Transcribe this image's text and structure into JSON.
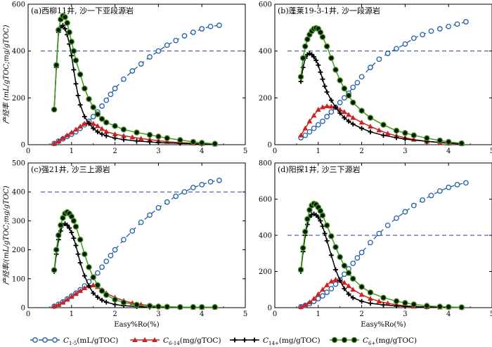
{
  "chart_data": [
    {
      "type": "line",
      "title": "(a)西柳11井, 沙一下亚段源岩",
      "xlabel": "",
      "ylabel": "产烃率 (mL/gTOC;mg/gTOC)",
      "xlim": [
        0,
        5
      ],
      "ylim": [
        0,
        600
      ],
      "xticks": [
        "0",
        "1",
        "2",
        "3",
        "4",
        "5"
      ],
      "yticks": [
        "0",
        "200",
        "400",
        "600"
      ],
      "ref_line": 400,
      "series": [
        {
          "key": "c15",
          "x": [
            0.6,
            0.7,
            0.8,
            0.9,
            1.0,
            1.1,
            1.2,
            1.3,
            1.4,
            1.5,
            1.6,
            1.7,
            1.8,
            1.9,
            2.0,
            2.2,
            2.4,
            2.6,
            2.8,
            3.0,
            3.2,
            3.4,
            3.6,
            3.8,
            4.0,
            4.2,
            4.4
          ],
          "y": [
            5,
            15,
            25,
            35,
            45,
            55,
            70,
            85,
            100,
            120,
            140,
            165,
            190,
            215,
            240,
            280,
            315,
            345,
            375,
            400,
            425,
            445,
            465,
            480,
            495,
            505,
            510
          ]
        },
        {
          "key": "c614",
          "x": [
            0.6,
            0.7,
            0.8,
            0.9,
            1.0,
            1.1,
            1.2,
            1.3,
            1.4,
            1.5,
            1.6,
            1.7,
            1.8,
            2.0,
            2.2,
            2.4,
            2.6,
            2.8,
            3.0,
            3.2,
            3.5,
            3.8,
            4.0,
            4.3
          ],
          "y": [
            5,
            15,
            28,
            40,
            52,
            65,
            78,
            90,
            95,
            90,
            80,
            68,
            56,
            45,
            38,
            32,
            26,
            22,
            17,
            13,
            9,
            6,
            4,
            2
          ]
        },
        {
          "key": "c14",
          "x": [
            0.6,
            0.65,
            0.7,
            0.75,
            0.8,
            0.85,
            0.9,
            0.95,
            1.0,
            1.05,
            1.1,
            1.15,
            1.2,
            1.3,
            1.4,
            1.5,
            1.6,
            1.7,
            1.8,
            2.0,
            2.2,
            2.5,
            2.8,
            3.0,
            3.5,
            4.0,
            4.3
          ],
          "y": [
            150,
            330,
            480,
            500,
            510,
            495,
            470,
            430,
            380,
            320,
            260,
            210,
            170,
            120,
            90,
            70,
            55,
            45,
            38,
            28,
            22,
            16,
            12,
            9,
            6,
            3,
            2
          ]
        },
        {
          "key": "c6",
          "x": [
            0.6,
            0.65,
            0.7,
            0.75,
            0.8,
            0.85,
            0.9,
            0.95,
            1.0,
            1.05,
            1.1,
            1.2,
            1.3,
            1.4,
            1.5,
            1.6,
            1.7,
            1.8,
            2.0,
            2.2,
            2.5,
            2.8,
            3.0,
            3.2,
            3.5,
            3.8,
            4.0,
            4.3
          ],
          "y": [
            150,
            340,
            490,
            535,
            550,
            545,
            520,
            480,
            440,
            400,
            360,
            300,
            240,
            195,
            160,
            130,
            110,
            95,
            80,
            65,
            52,
            42,
            35,
            28,
            20,
            12,
            8,
            4
          ]
        }
      ]
    },
    {
      "type": "line",
      "title": "(b)蓬莱19-3-1井, 沙一段源岩",
      "xlabel": "",
      "ylabel": "",
      "xlim": [
        0,
        5
      ],
      "ylim": [
        0,
        600
      ],
      "xticks": [
        "0",
        "1",
        "2",
        "3",
        "4",
        "5"
      ],
      "yticks": [
        "0",
        "200",
        "400",
        "600"
      ],
      "ref_line": 400,
      "series": [
        {
          "key": "c15",
          "x": [
            0.6,
            0.7,
            0.8,
            0.9,
            1.0,
            1.1,
            1.2,
            1.3,
            1.4,
            1.5,
            1.6,
            1.7,
            1.8,
            1.9,
            2.0,
            2.2,
            2.4,
            2.6,
            2.8,
            3.0,
            3.2,
            3.4,
            3.6,
            3.8,
            4.0,
            4.2,
            4.4
          ],
          "y": [
            30,
            40,
            55,
            70,
            85,
            100,
            120,
            140,
            160,
            180,
            200,
            220,
            245,
            265,
            290,
            330,
            365,
            390,
            410,
            430,
            455,
            470,
            485,
            495,
            505,
            515,
            525
          ]
        },
        {
          "key": "c614",
          "x": [
            0.6,
            0.7,
            0.8,
            0.9,
            1.0,
            1.1,
            1.2,
            1.3,
            1.4,
            1.5,
            1.6,
            1.7,
            1.8,
            2.0,
            2.2,
            2.4,
            2.6,
            2.8,
            3.0,
            3.2,
            3.5,
            3.8,
            4.0,
            4.3
          ],
          "y": [
            40,
            70,
            100,
            125,
            150,
            160,
            165,
            163,
            160,
            150,
            140,
            128,
            115,
            95,
            78,
            62,
            48,
            38,
            30,
            22,
            14,
            9,
            6,
            3
          ]
        },
        {
          "key": "c14",
          "x": [
            0.6,
            0.65,
            0.7,
            0.75,
            0.8,
            0.85,
            0.9,
            0.95,
            1.0,
            1.05,
            1.1,
            1.15,
            1.2,
            1.3,
            1.4,
            1.5,
            1.6,
            1.7,
            1.8,
            2.0,
            2.2,
            2.5,
            2.8,
            3.0,
            3.5,
            4.0,
            4.3
          ],
          "y": [
            270,
            330,
            370,
            385,
            390,
            385,
            375,
            360,
            340,
            310,
            280,
            250,
            225,
            190,
            160,
            135,
            115,
            100,
            88,
            70,
            55,
            40,
            30,
            24,
            14,
            7,
            4
          ]
        },
        {
          "key": "c6",
          "x": [
            0.6,
            0.65,
            0.7,
            0.75,
            0.8,
            0.85,
            0.9,
            0.95,
            1.0,
            1.05,
            1.1,
            1.2,
            1.3,
            1.4,
            1.5,
            1.6,
            1.7,
            1.8,
            2.0,
            2.2,
            2.5,
            2.8,
            3.0,
            3.2,
            3.5,
            3.8,
            4.0,
            4.3
          ],
          "y": [
            290,
            370,
            420,
            450,
            470,
            485,
            495,
            498,
            495,
            480,
            460,
            420,
            370,
            320,
            275,
            240,
            210,
            180,
            145,
            115,
            85,
            60,
            50,
            40,
            28,
            18,
            12,
            6
          ]
        }
      ]
    },
    {
      "type": "line",
      "title": "(c)强21井, 沙三上源岩",
      "xlabel": "Easy%Ro(%)",
      "ylabel": "产烃率/(mL/gTOC;mg/gTOC)",
      "xlim": [
        0,
        5
      ],
      "ylim": [
        0,
        500
      ],
      "xticks": [
        "0",
        "1",
        "2",
        "3",
        "4",
        "5"
      ],
      "yticks": [
        "0",
        "100",
        "200",
        "300",
        "400",
        "500"
      ],
      "ref_line": 400,
      "series": [
        {
          "key": "c15",
          "x": [
            0.6,
            0.7,
            0.8,
            0.9,
            1.0,
            1.1,
            1.2,
            1.3,
            1.4,
            1.5,
            1.6,
            1.7,
            1.8,
            1.9,
            2.0,
            2.2,
            2.4,
            2.6,
            2.8,
            3.0,
            3.2,
            3.4,
            3.6,
            3.8,
            4.0,
            4.2,
            4.4
          ],
          "y": [
            5,
            12,
            20,
            30,
            40,
            50,
            62,
            75,
            90,
            105,
            120,
            140,
            160,
            180,
            200,
            235,
            265,
            295,
            320,
            345,
            365,
            385,
            400,
            415,
            425,
            435,
            440
          ]
        },
        {
          "key": "c614",
          "x": [
            0.6,
            0.7,
            0.8,
            0.9,
            1.0,
            1.1,
            1.2,
            1.3,
            1.4,
            1.5,
            1.6,
            1.7,
            1.8,
            2.0,
            2.2,
            2.4,
            2.6,
            2.8,
            3.0,
            3.2,
            3.5,
            3.8,
            4.0,
            4.3
          ],
          "y": [
            5,
            10,
            18,
            28,
            38,
            48,
            58,
            68,
            75,
            78,
            72,
            62,
            50,
            35,
            24,
            16,
            11,
            7,
            5,
            3,
            2,
            1,
            1,
            1
          ]
        },
        {
          "key": "c14",
          "x": [
            0.6,
            0.65,
            0.7,
            0.75,
            0.8,
            0.85,
            0.9,
            0.95,
            1.0,
            1.05,
            1.1,
            1.15,
            1.2,
            1.3,
            1.4,
            1.5,
            1.6,
            1.7,
            1.8,
            2.0,
            2.2,
            2.5,
            2.8,
            3.0,
            3.5,
            4.0,
            4.3
          ],
          "y": [
            125,
            185,
            235,
            265,
            285,
            290,
            285,
            275,
            260,
            240,
            215,
            185,
            155,
            110,
            75,
            50,
            36,
            26,
            19,
            11,
            7,
            4,
            2,
            2,
            1,
            1,
            1
          ]
        },
        {
          "key": "c6",
          "x": [
            0.6,
            0.65,
            0.7,
            0.75,
            0.8,
            0.85,
            0.9,
            0.95,
            1.0,
            1.05,
            1.1,
            1.2,
            1.3,
            1.4,
            1.5,
            1.6,
            1.7,
            1.8,
            2.0,
            2.2,
            2.5,
            2.8,
            3.0,
            3.2,
            3.5,
            3.8,
            4.0,
            4.3
          ],
          "y": [
            130,
            200,
            250,
            285,
            310,
            325,
            330,
            325,
            315,
            300,
            280,
            235,
            185,
            140,
            105,
            78,
            58,
            44,
            28,
            18,
            10,
            6,
            4,
            3,
            2,
            2,
            2,
            2
          ]
        }
      ]
    },
    {
      "type": "line",
      "title": "(d)阳探1井, 沙三下源岩",
      "xlabel": "Easy%Ro(%)",
      "ylabel": "",
      "xlim": [
        0,
        5
      ],
      "ylim": [
        0,
        800
      ],
      "xticks": [
        "0",
        "1",
        "2",
        "3",
        "4",
        "5"
      ],
      "yticks": [
        "0",
        "200",
        "400",
        "600",
        "800"
      ],
      "ref_line": 400,
      "series": [
        {
          "key": "c15",
          "x": [
            0.6,
            0.7,
            0.8,
            0.9,
            1.0,
            1.1,
            1.2,
            1.3,
            1.4,
            1.5,
            1.6,
            1.7,
            1.8,
            1.9,
            2.0,
            2.2,
            2.4,
            2.6,
            2.8,
            3.0,
            3.2,
            3.4,
            3.6,
            3.8,
            4.0,
            4.2,
            4.4
          ],
          "y": [
            5,
            12,
            22,
            35,
            50,
            65,
            85,
            105,
            130,
            155,
            185,
            215,
            245,
            275,
            305,
            360,
            410,
            455,
            495,
            530,
            565,
            595,
            620,
            645,
            665,
            680,
            690
          ]
        },
        {
          "key": "c614",
          "x": [
            0.6,
            0.7,
            0.8,
            0.9,
            1.0,
            1.1,
            1.2,
            1.3,
            1.4,
            1.5,
            1.6,
            1.7,
            1.8,
            2.0,
            2.2,
            2.4,
            2.6,
            2.8,
            3.0,
            3.2,
            3.5,
            3.8,
            4.0,
            4.3
          ],
          "y": [
            5,
            15,
            30,
            50,
            75,
            100,
            125,
            145,
            155,
            150,
            138,
            120,
            100,
            72,
            50,
            35,
            24,
            16,
            10,
            7,
            4,
            2,
            2,
            1
          ]
        },
        {
          "key": "c14",
          "x": [
            0.6,
            0.65,
            0.7,
            0.75,
            0.8,
            0.85,
            0.9,
            0.95,
            1.0,
            1.05,
            1.1,
            1.15,
            1.2,
            1.3,
            1.4,
            1.5,
            1.6,
            1.7,
            1.8,
            2.0,
            2.2,
            2.5,
            2.8,
            3.0,
            3.5,
            4.0,
            4.3
          ],
          "y": [
            200,
            310,
            400,
            460,
            500,
            515,
            518,
            512,
            500,
            480,
            450,
            410,
            370,
            290,
            210,
            150,
            105,
            75,
            55,
            35,
            24,
            15,
            10,
            7,
            4,
            2,
            1
          ]
        },
        {
          "key": "c6",
          "x": [
            0.6,
            0.65,
            0.7,
            0.75,
            0.8,
            0.85,
            0.9,
            0.95,
            1.0,
            1.05,
            1.1,
            1.2,
            1.3,
            1.4,
            1.5,
            1.6,
            1.7,
            1.8,
            2.0,
            2.2,
            2.5,
            2.8,
            3.0,
            3.2,
            3.5,
            3.8,
            4.0,
            4.3
          ],
          "y": [
            210,
            330,
            420,
            490,
            540,
            565,
            575,
            570,
            555,
            535,
            510,
            455,
            395,
            335,
            280,
            232,
            192,
            160,
            115,
            84,
            55,
            36,
            26,
            18,
            10,
            6,
            4,
            2
          ]
        }
      ]
    }
  ],
  "legend": [
    {
      "key": "c15",
      "label_var": "C",
      "label_sub": "1-5",
      "label_unit": "(mL/gTOC)",
      "color": "#1f5fa8",
      "dash": "7,5",
      "marker": "circle-open"
    },
    {
      "key": "c614",
      "label_var": "C",
      "label_sub": "6-14",
      "label_unit": "(mg/gTOC)",
      "color": "#cc2222",
      "dash": "",
      "marker": "triangle"
    },
    {
      "key": "c14",
      "label_var": "C",
      "label_sub": "14+",
      "label_unit": "(mg/gTOC)",
      "color": "#000000",
      "dash": "",
      "marker": "plus"
    },
    {
      "key": "c6",
      "label_var": "C",
      "label_sub": "6+",
      "label_unit": "(mg/gTOC)",
      "color": "#3f9e1f",
      "dash": "",
      "marker": "circle-filled"
    }
  ]
}
